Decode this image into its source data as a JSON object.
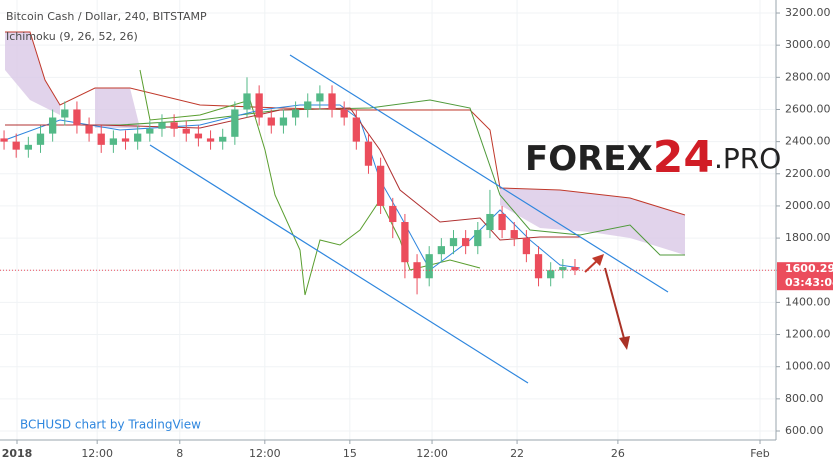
{
  "chart_data": {
    "type": "candlestick",
    "title": "Bitcoin Cash / Dollar, 240, BITSTAMP",
    "indicator": "Ichimoku (9, 26, 52, 26)",
    "credit": "BCHUSD chart by TradingView",
    "watermark": [
      "FOREX",
      "24",
      ".PRO"
    ],
    "up_color": "#53b987",
    "down_color": "#eb4d5c",
    "x": [
      1,
      4,
      7,
      10,
      13,
      16,
      19,
      22,
      25,
      28,
      31,
      34,
      37,
      40,
      43,
      46,
      49,
      52,
      55,
      58,
      61,
      64,
      67,
      70,
      73,
      76,
      79,
      82,
      85,
      88,
      91,
      94,
      97,
      100,
      103,
      106,
      109,
      112,
      115,
      118,
      121,
      124,
      127,
      130,
      133,
      136,
      139,
      142
    ],
    "open": [
      2420,
      2400,
      2350,
      2380,
      2450,
      2550,
      2600,
      2500,
      2450,
      2380,
      2420,
      2400,
      2450,
      2480,
      2520,
      2480,
      2450,
      2420,
      2400,
      2430,
      2600,
      2700,
      2550,
      2500,
      2550,
      2600,
      2650,
      2700,
      2600,
      2550,
      2400,
      2250,
      2000,
      1900,
      1650,
      1550,
      1700,
      1750,
      1800,
      1750,
      1850,
      1950,
      1850,
      1800,
      1700,
      1550,
      1600,
      1620
    ],
    "high": [
      2470,
      2450,
      2430,
      2500,
      2600,
      2650,
      2650,
      2550,
      2500,
      2470,
      2470,
      2500,
      2530,
      2570,
      2570,
      2530,
      2500,
      2470,
      2480,
      2650,
      2800,
      2750,
      2600,
      2600,
      2650,
      2700,
      2750,
      2750,
      2650,
      2600,
      2450,
      2300,
      2050,
      1950,
      1700,
      1750,
      1800,
      1850,
      1850,
      1900,
      2100,
      2000,
      1900,
      1850,
      1750,
      1650,
      1670,
      1670
    ],
    "low": [
      2350,
      2300,
      2300,
      2330,
      2400,
      2500,
      2450,
      2400,
      2330,
      2330,
      2350,
      2350,
      2400,
      2430,
      2430,
      2400,
      2370,
      2350,
      2350,
      2380,
      2550,
      2500,
      2450,
      2450,
      2500,
      2550,
      2600,
      2550,
      2500,
      2350,
      2200,
      1950,
      1800,
      1550,
      1450,
      1500,
      1650,
      1700,
      1700,
      1700,
      1800,
      1800,
      1750,
      1650,
      1500,
      1500,
      1550,
      1570
    ],
    "close": [
      2400,
      2350,
      2380,
      2450,
      2550,
      2600,
      2500,
      2450,
      2380,
      2420,
      2400,
      2450,
      2480,
      2520,
      2480,
      2450,
      2420,
      2400,
      2430,
      2600,
      2700,
      2550,
      2500,
      2550,
      2600,
      2650,
      2700,
      2600,
      2550,
      2400,
      2250,
      2000,
      1900,
      1650,
      1550,
      1700,
      1750,
      1800,
      1750,
      1850,
      1950,
      1850,
      1800,
      1700,
      1550,
      1600,
      1620,
      1600
    ],
    "xlim": [
      0,
      191.4
    ],
    "xticks": [
      {
        "value": 4.2,
        "label": "2018"
      },
      {
        "value": 24,
        "label": "12:00"
      },
      {
        "value": 44.4,
        "label": "8"
      },
      {
        "value": 65.4,
        "label": "12:00"
      },
      {
        "value": 86.4,
        "label": "15"
      },
      {
        "value": 106.7,
        "label": "12:00"
      },
      {
        "value": 127.7,
        "label": "22"
      },
      {
        "value": 152.6,
        "label": "26"
      },
      {
        "value": 187.7,
        "label": "Feb"
      }
    ],
    "ylim": [
      544,
      3281
    ],
    "yticks": [
      {
        "value": 600,
        "label": "600.00"
      },
      {
        "value": 800,
        "label": "800.00"
      },
      {
        "value": 1000,
        "label": "1000.00"
      },
      {
        "value": 1200,
        "label": "1200.00"
      },
      {
        "value": 1400,
        "label": "1400.00"
      },
      {
        "value": 1600,
        "label": "1600.00"
      },
      {
        "value": 1800,
        "label": "1800.00"
      },
      {
        "value": 2000,
        "label": "2000.00"
      },
      {
        "value": 2200,
        "label": "2200.00"
      },
      {
        "value": 2400,
        "label": "2400.00"
      },
      {
        "value": 2600,
        "label": "2600.00"
      },
      {
        "value": 2800,
        "label": "2800.00"
      },
      {
        "value": 3000,
        "label": "3000.00"
      },
      {
        "value": 3200,
        "label": "3200.00"
      }
    ],
    "last_price": 1600.29,
    "countdown": "03:43:04",
    "grid": true
  }
}
